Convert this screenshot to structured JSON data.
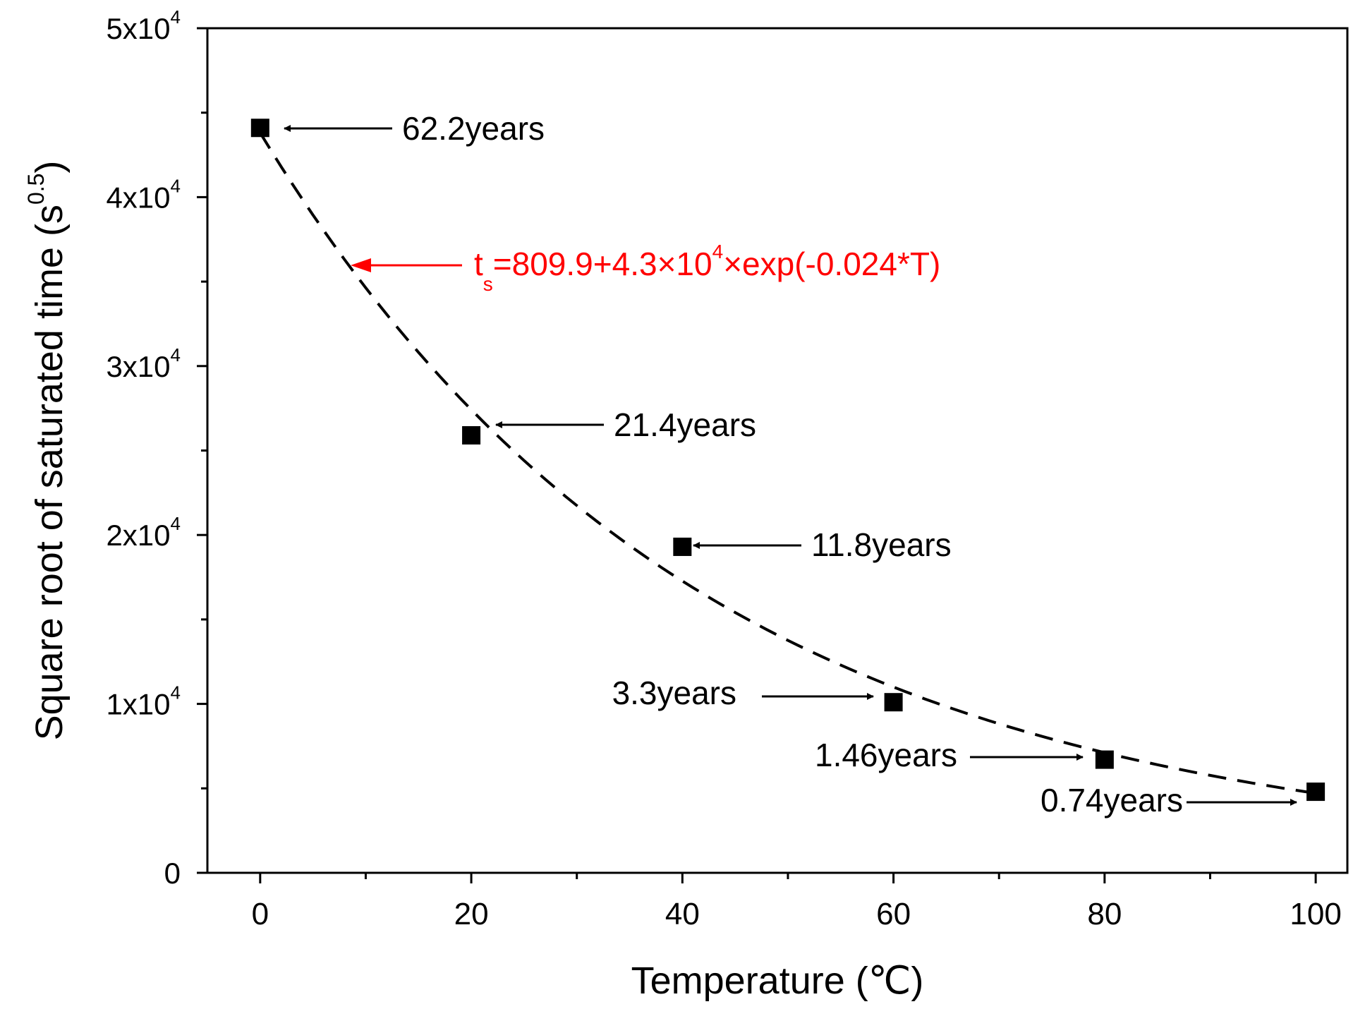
{
  "chart_data": {
    "type": "scatter",
    "xlabel": "Temperature (℃)",
    "ylabel_main": "Square root of saturated time (s",
    "ylabel_sup": "0.5",
    "ylabel_close": ")",
    "xlim": [
      -5,
      103
    ],
    "ylim": [
      0,
      50000
    ],
    "x_ticks": [
      0,
      20,
      40,
      60,
      80,
      100
    ],
    "x_tick_labels": [
      "0",
      "20",
      "40",
      "60",
      "80",
      "100"
    ],
    "x_minor_ticks": [
      10,
      30,
      50,
      70,
      90
    ],
    "y_ticks": [
      0,
      10000,
      20000,
      30000,
      40000,
      50000
    ],
    "y_tick_labels": [
      {
        "base": "0",
        "exp": ""
      },
      {
        "base": "1x10",
        "exp": "4"
      },
      {
        "base": "2x10",
        "exp": "4"
      },
      {
        "base": "3x10",
        "exp": "4"
      },
      {
        "base": "4x10",
        "exp": "4"
      },
      {
        "base": "5x10",
        "exp": "4"
      }
    ],
    "y_minor_ticks": [
      5000,
      15000,
      25000,
      35000,
      45000
    ],
    "series": [
      {
        "name": "data",
        "marker": "square",
        "x": [
          0,
          20,
          40,
          60,
          80,
          100
        ],
        "y": [
          44100,
          25900,
          19300,
          10100,
          6700,
          4800
        ]
      }
    ],
    "fit": {
      "style": "dashed",
      "a": 809.9,
      "b": 43000,
      "k": -0.024,
      "x_from": 0,
      "x_to": 100,
      "label_parts": {
        "t": "t",
        "sub": "s",
        "mid": "=809.9+4.3×10",
        "sup": "4",
        "end": "×exp(-0.024*T)"
      },
      "color": "#ff0000"
    },
    "annotations": [
      {
        "text": "62.2years",
        "x": 0,
        "y": 44100
      },
      {
        "text": "21.4years",
        "x": 20,
        "y": 25900
      },
      {
        "text": "11.8years",
        "x": 40,
        "y": 19300
      },
      {
        "text": "3.3years",
        "x": 60,
        "y": 10100
      },
      {
        "text": "1.46years",
        "x": 80,
        "y": 6700
      },
      {
        "text": "0.74years",
        "x": 100,
        "y": 4800
      }
    ]
  }
}
